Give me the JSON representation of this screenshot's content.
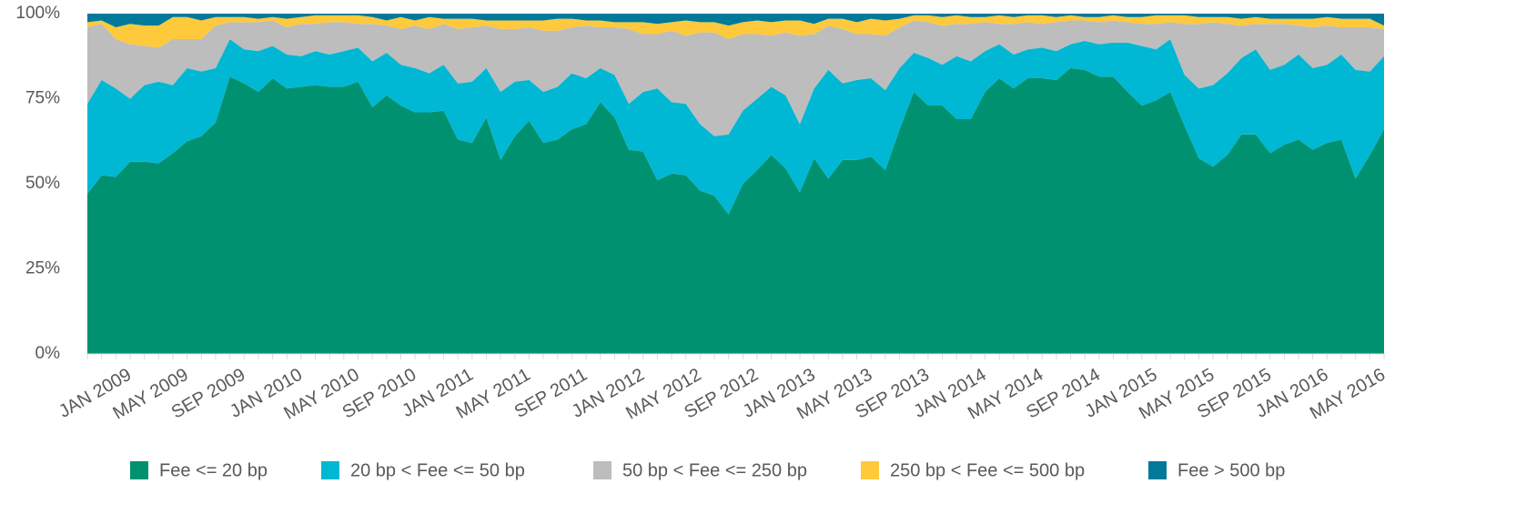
{
  "chart_data": {
    "type": "stacked_area",
    "categories": [
      null,
      null,
      null,
      "JAN 2009",
      null,
      null,
      null,
      "MAY 2009",
      null,
      null,
      null,
      "SEP 2009",
      null,
      null,
      null,
      "JAN 2010",
      null,
      null,
      null,
      "MAY 2010",
      null,
      null,
      null,
      "SEP 2010",
      null,
      null,
      null,
      "JAN 2011",
      null,
      null,
      null,
      "MAY 2011",
      null,
      null,
      null,
      "SEP 2011",
      null,
      null,
      null,
      "JAN 2012",
      null,
      null,
      null,
      "MAY 2012",
      null,
      null,
      null,
      "SEP 2012",
      null,
      null,
      null,
      "JAN 2013",
      null,
      null,
      null,
      "MAY 2013",
      null,
      null,
      null,
      "SEP 2013",
      null,
      null,
      null,
      "JAN 2014",
      null,
      null,
      null,
      "MAY 2014",
      null,
      null,
      null,
      "SEP 2014",
      null,
      null,
      null,
      "JAN 2015",
      null,
      null,
      null,
      "MAY 2015",
      null,
      null,
      null,
      "SEP 2015",
      null,
      null,
      null,
      "JAN 2016",
      null,
      null,
      null,
      "MAY 2016"
    ],
    "series": [
      {
        "name": "Fee <= 20 bp",
        "color": "#009270",
        "values": [
          47,
          52.5,
          52,
          56.5,
          56.5,
          56,
          59,
          62.5,
          64,
          68,
          81.5,
          79.5,
          77,
          81,
          78,
          78.5,
          79,
          78.5,
          78.5,
          80,
          72.5,
          76,
          73,
          71,
          71,
          71.5,
          63,
          62,
          69.5,
          57,
          64,
          68.5,
          62,
          63,
          66,
          67.5,
          74,
          69.5,
          60,
          59.5,
          51,
          53,
          52.5,
          48,
          46.5,
          41,
          50,
          54,
          58.5,
          54.5,
          47.5,
          57.5,
          51.5,
          57,
          57,
          58,
          54,
          66,
          77,
          73,
          73,
          69,
          69,
          77,
          81,
          78,
          81,
          81,
          80.5,
          84,
          83.5,
          81.5,
          81.5,
          77,
          73,
          74.5,
          77,
          67,
          57.5,
          55,
          58.5,
          64.5,
          64.5,
          59,
          61.5,
          63,
          60,
          62,
          63,
          51.5,
          58.5,
          66
        ]
      },
      {
        "name": "20 bp < Fee <= 50 bp",
        "color": "#00b8d4",
        "values": [
          26.5,
          28,
          26,
          18.5,
          22.5,
          24,
          20,
          21.5,
          19,
          16,
          11,
          10,
          12,
          9.5,
          10,
          9,
          10,
          9.5,
          10.5,
          10,
          13.5,
          12.5,
          12,
          13,
          11.5,
          13.5,
          16.5,
          18,
          14.5,
          20,
          16,
          12,
          15,
          15.5,
          16.5,
          13.5,
          10,
          12.5,
          13.5,
          17.5,
          27,
          21,
          21,
          19.5,
          17.5,
          23.5,
          21.5,
          21,
          20,
          21.5,
          20,
          20.5,
          32,
          22.5,
          23.5,
          23,
          23.5,
          18,
          11.5,
          14,
          12,
          18.5,
          17,
          12,
          10,
          10,
          8.5,
          9,
          8.5,
          7,
          8.5,
          9.5,
          10,
          14.5,
          17.5,
          15,
          15.5,
          15,
          20.5,
          24,
          24,
          22.5,
          25,
          24.5,
          23.5,
          25,
          24,
          23,
          25,
          32,
          24.5,
          21.5
        ]
      },
      {
        "name": "50 bp < Fee <= 250 bp",
        "color": "#bdbdbd",
        "values": [
          22.5,
          16.5,
          14.5,
          16,
          11.5,
          10,
          13.5,
          8.5,
          9.5,
          12.5,
          5,
          8,
          8.5,
          7.5,
          8,
          9.5,
          8,
          9.5,
          8.5,
          7,
          11,
          8,
          10.5,
          12.5,
          13,
          12,
          16,
          16,
          12.5,
          18.5,
          15.5,
          15.5,
          18,
          16.5,
          13.5,
          15.5,
          12,
          14,
          22,
          17,
          16,
          21,
          20,
          27,
          30.5,
          28,
          22.5,
          19,
          15,
          18.5,
          26,
          16,
          13,
          16,
          13.5,
          13,
          16,
          12,
          9.5,
          10.5,
          11.5,
          9.5,
          11,
          8.5,
          6,
          9,
          8,
          7,
          8.5,
          7,
          6,
          6.5,
          6.5,
          6,
          6.5,
          7.5,
          5,
          15,
          19,
          18.5,
          14.5,
          9.5,
          7.5,
          13.5,
          12,
          8.5,
          12,
          11.5,
          8,
          12.5,
          13,
          8
        ]
      },
      {
        "name": "250 bp < Fee <= 500 bp",
        "color": "#ffc93c",
        "values": [
          1.5,
          1,
          3.5,
          6,
          6,
          6.5,
          6.5,
          6.5,
          5.5,
          2.5,
          1.5,
          1.5,
          1,
          1,
          2.5,
          2,
          2.5,
          2,
          2,
          2.5,
          2,
          1.5,
          3.5,
          1.5,
          3.5,
          1.5,
          3,
          2.5,
          1.5,
          2.5,
          2.5,
          2,
          3,
          3.5,
          2.5,
          1.5,
          2,
          1.5,
          2,
          3.5,
          3,
          2.5,
          4.5,
          3,
          3,
          4,
          3.5,
          4,
          4,
          3.5,
          4.5,
          3,
          2,
          3,
          3.5,
          4.5,
          4.5,
          2.5,
          1.5,
          2,
          2.5,
          2.5,
          2,
          1.5,
          2.5,
          2,
          2,
          2.5,
          1.5,
          1.5,
          1,
          1.5,
          1.5,
          1.5,
          2,
          2.5,
          2,
          2.5,
          2,
          1.5,
          2,
          2,
          2,
          1.5,
          1.5,
          2,
          2.5,
          2.5,
          2.5,
          2.5,
          2.5,
          1
        ]
      },
      {
        "name": "Fee > 500 bp",
        "color": "#00799b",
        "values": [
          2.5,
          2,
          4,
          3,
          3.5,
          3.5,
          1,
          1,
          2,
          1,
          1,
          1,
          1.5,
          1,
          1.5,
          1,
          0.5,
          0.5,
          0.5,
          0.5,
          1,
          2,
          1,
          2,
          1,
          1.5,
          1.5,
          1.5,
          2,
          2,
          2,
          2,
          2,
          1.5,
          1.5,
          2,
          2,
          2.5,
          2.5,
          2.5,
          3,
          2.5,
          2,
          2.5,
          2.5,
          3.5,
          2.5,
          2,
          2.5,
          2,
          2,
          3,
          1.5,
          1.5,
          2.5,
          1.5,
          2,
          1.5,
          0.5,
          0.5,
          1,
          0.5,
          1,
          1,
          0.5,
          1,
          0.5,
          0.5,
          1,
          0.5,
          1,
          1,
          0.5,
          1,
          1,
          0.5,
          0.5,
          0.5,
          1,
          1,
          1,
          1.5,
          1,
          1.5,
          1.5,
          1.5,
          1.5,
          1,
          1.5,
          1.5,
          1.5,
          3.5
        ]
      }
    ],
    "ylim": [
      0,
      100
    ],
    "yticks": [
      {
        "value": 0,
        "label": "0%"
      },
      {
        "value": 25,
        "label": "25%"
      },
      {
        "value": 50,
        "label": "50%"
      },
      {
        "value": 75,
        "label": "75%"
      },
      {
        "value": 100,
        "label": "100%"
      }
    ],
    "legend": "bottom"
  }
}
